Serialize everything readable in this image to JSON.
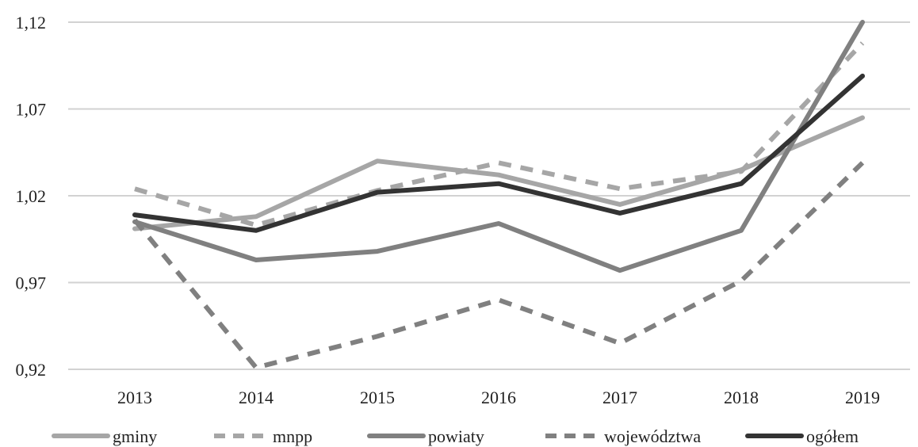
{
  "chart_data": {
    "type": "line",
    "categories": [
      "2013",
      "2014",
      "2015",
      "2016",
      "2017",
      "2018",
      "2019"
    ],
    "y_ticks": [
      "1,12",
      "1,07",
      "1,02",
      "0,97",
      "0,92"
    ],
    "ylim": [
      0.92,
      1.12
    ],
    "grid": true,
    "legend_position": "bottom",
    "series": [
      {
        "name": "gminy",
        "values": [
          1.001,
          1.008,
          1.04,
          1.032,
          1.015,
          1.035,
          1.065
        ],
        "color": "#a6a6a6",
        "dash": "solid"
      },
      {
        "name": "mnpp",
        "values": [
          1.024,
          1.003,
          1.023,
          1.039,
          1.024,
          1.034,
          1.108
        ],
        "color": "#a6a6a6",
        "dash": "dashed"
      },
      {
        "name": "powiaty",
        "values": [
          1.005,
          0.983,
          0.988,
          1.004,
          0.977,
          1.0,
          1.12
        ],
        "color": "#808080",
        "dash": "solid"
      },
      {
        "name": "województwa",
        "values": [
          1.006,
          0.921,
          0.939,
          0.96,
          0.935,
          0.971,
          1.039
        ],
        "color": "#808080",
        "dash": "dashed"
      },
      {
        "name": "ogółem",
        "values": [
          1.009,
          1.0,
          1.022,
          1.027,
          1.01,
          1.027,
          1.089
        ],
        "color": "#333333",
        "dash": "solid"
      }
    ]
  }
}
